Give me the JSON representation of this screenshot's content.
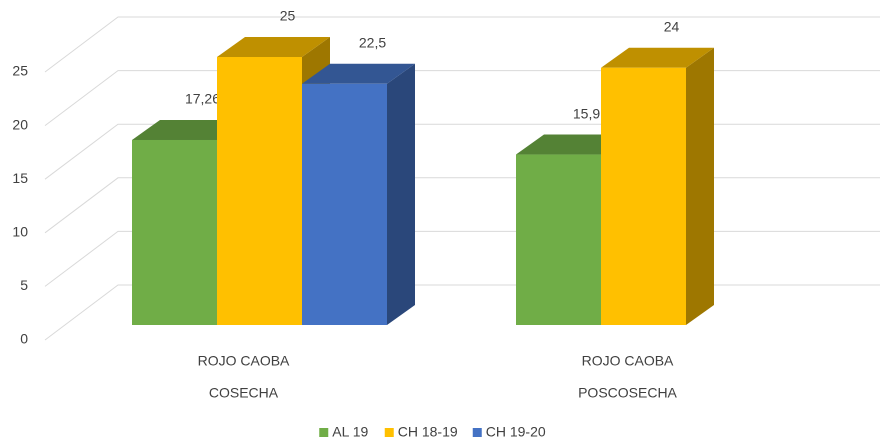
{
  "chart_data": {
    "type": "bar3d",
    "categories": [
      [
        "ROJO CAOBA",
        "COSECHA"
      ],
      [
        "ROJO CAOBA",
        "POSCOSECHA"
      ]
    ],
    "series": [
      {
        "name": "AL 19",
        "color": "#70ad47",
        "values": [
          17.26,
          15.9
        ],
        "value_labels": [
          "17,26",
          "15,9"
        ]
      },
      {
        "name": "CH 18-19",
        "color": "#ffc000",
        "values": [
          25,
          24
        ]
      },
      {
        "name": "CH 19-20",
        "color": "#4472c4",
        "values": [
          22.5,
          null
        ],
        "value_labels": [
          "22,5",
          null
        ]
      }
    ],
    "ylim": [
      0,
      25
    ],
    "yticks": [
      0,
      5,
      10,
      15,
      20,
      25
    ],
    "grid": true,
    "legend": "bottom"
  }
}
